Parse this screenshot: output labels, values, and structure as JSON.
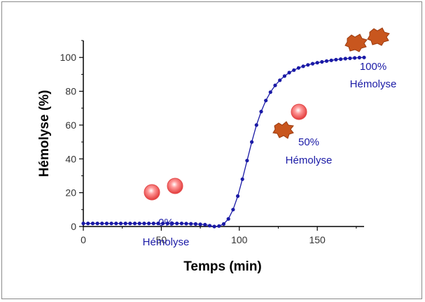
{
  "chart_data": {
    "type": "line",
    "title": "",
    "xlabel": "Temps (min)",
    "ylabel": "Hémolyse (%)",
    "xlim": [
      0,
      180
    ],
    "ylim": [
      0,
      110
    ],
    "x_ticks": [
      0,
      50,
      100,
      150
    ],
    "x_tick_labels": [
      "0",
      "50",
      "100",
      "150"
    ],
    "y_ticks": [
      0,
      20,
      40,
      60,
      80,
      100
    ],
    "y_tick_labels": [
      "0",
      "20",
      "40",
      "60",
      "80",
      "100"
    ],
    "grid": false,
    "legend": "none",
    "series": [
      {
        "name": "",
        "color": "#1a1aa6",
        "x": [
          0,
          3,
          6,
          9,
          12,
          15,
          18,
          21,
          24,
          27,
          30,
          33,
          36,
          39,
          42,
          45,
          48,
          51,
          54,
          57,
          60,
          63,
          66,
          69,
          72,
          75,
          78,
          81,
          84,
          87,
          90,
          93,
          96,
          99,
          102,
          105,
          108,
          111,
          114,
          117,
          120,
          123,
          126,
          129,
          132,
          135,
          138,
          141,
          144,
          147,
          150,
          153,
          156,
          159,
          162,
          165,
          168,
          171,
          174,
          177,
          180
        ],
        "y": [
          1.8,
          1.8,
          1.8,
          1.8,
          1.8,
          1.8,
          1.8,
          1.8,
          1.8,
          1.8,
          1.8,
          1.8,
          1.8,
          1.8,
          1.8,
          1.8,
          1.8,
          1.8,
          1.8,
          1.8,
          1.8,
          1.8,
          1.7,
          1.6,
          1.5,
          1.3,
          1.1,
          0.5,
          0.0,
          0.3,
          1.5,
          4.5,
          10.0,
          18.0,
          28.0,
          39.0,
          50.0,
          60.0,
          68.0,
          74.5,
          79.5,
          83.5,
          86.5,
          89.0,
          91.0,
          92.5,
          93.8,
          94.8,
          95.6,
          96.3,
          96.9,
          97.4,
          97.9,
          98.3,
          98.7,
          99.0,
          99.3,
          99.5,
          99.7,
          99.9,
          100.0
        ]
      }
    ],
    "annotations": [
      {
        "line1": "0%",
        "line2": "Hémolyse"
      },
      {
        "line1": "50%",
        "line2": "Hémolyse"
      },
      {
        "line1": "100%",
        "line2": "Hémolyse"
      }
    ]
  }
}
